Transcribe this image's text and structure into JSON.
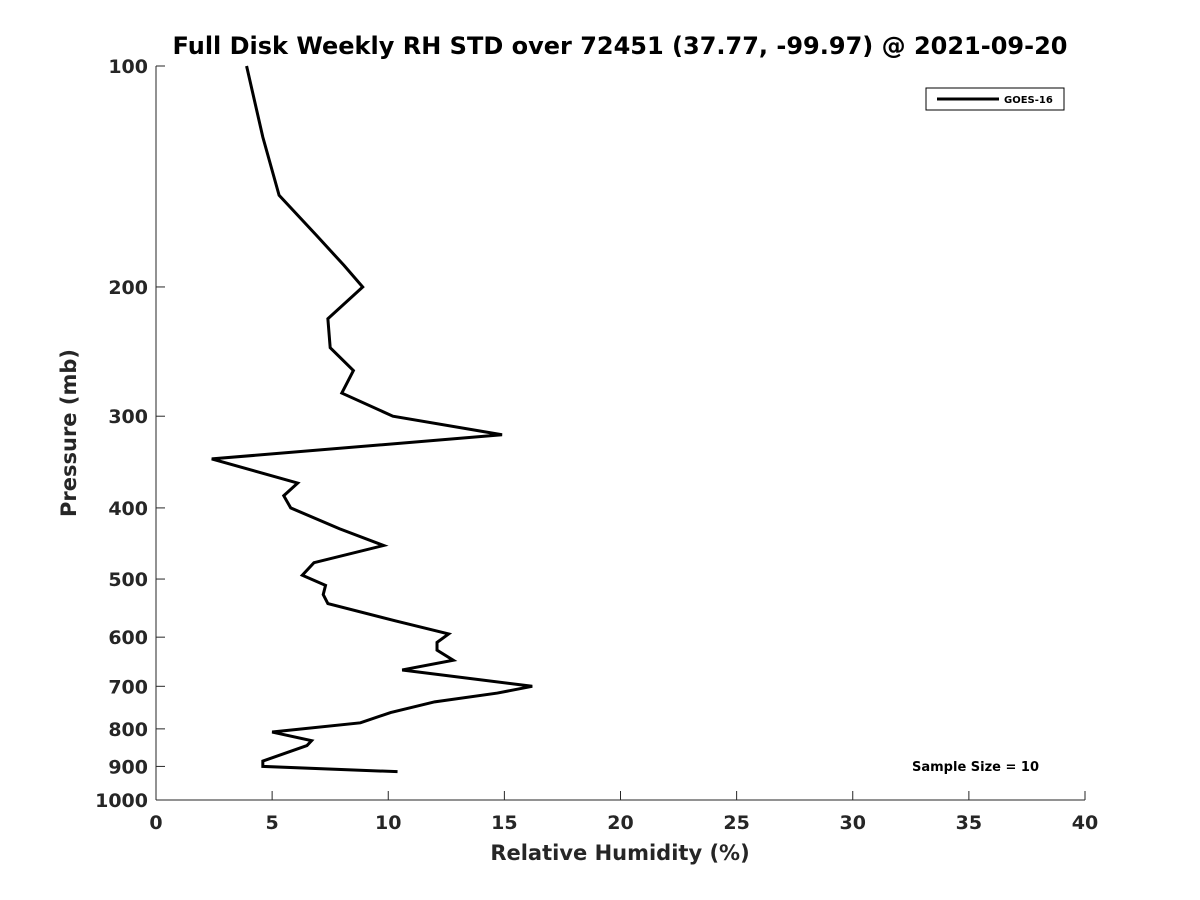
{
  "chart_data": {
    "type": "line",
    "title": "Full Disk Weekly RH STD over 72451 (37.77, -99.97) @ 2021-09-20",
    "xlabel": "Relative Humidity (%)",
    "ylabel": "Pressure (mb)",
    "xlim": [
      0,
      40
    ],
    "ylim": [
      100,
      1000
    ],
    "yscale": "log",
    "yreversed": true,
    "grid": false,
    "legend_position": "top-right",
    "x_ticks": [
      0,
      5,
      10,
      15,
      20,
      25,
      30,
      35,
      40
    ],
    "x_tick_labels": [
      "0",
      "5",
      "10",
      "15",
      "20",
      "25",
      "30",
      "35",
      "40"
    ],
    "y_ticks": [
      100,
      200,
      300,
      400,
      500,
      600,
      700,
      800,
      900,
      1000
    ],
    "y_tick_labels": [
      "100",
      "200",
      "300",
      "400",
      "500",
      "600",
      "700",
      "800",
      "900",
      "1000"
    ],
    "series": [
      {
        "name": "GOES-16",
        "color": "#000000",
        "points": [
          {
            "x": 3.9,
            "p": 100
          },
          {
            "x": 4.6,
            "p": 125
          },
          {
            "x": 5.3,
            "p": 150
          },
          {
            "x": 6.9,
            "p": 170
          },
          {
            "x": 8.1,
            "p": 187
          },
          {
            "x": 8.9,
            "p": 200
          },
          {
            "x": 7.4,
            "p": 221
          },
          {
            "x": 7.5,
            "p": 242
          },
          {
            "x": 8.5,
            "p": 260
          },
          {
            "x": 8.0,
            "p": 279
          },
          {
            "x": 10.2,
            "p": 300
          },
          {
            "x": 14.9,
            "p": 318
          },
          {
            "x": 2.4,
            "p": 343
          },
          {
            "x": 6.1,
            "p": 370
          },
          {
            "x": 5.5,
            "p": 385
          },
          {
            "x": 5.8,
            "p": 400
          },
          {
            "x": 7.9,
            "p": 427
          },
          {
            "x": 9.8,
            "p": 450
          },
          {
            "x": 6.8,
            "p": 475
          },
          {
            "x": 6.3,
            "p": 494
          },
          {
            "x": 7.3,
            "p": 510
          },
          {
            "x": 7.2,
            "p": 525
          },
          {
            "x": 7.4,
            "p": 540
          },
          {
            "x": 10.3,
            "p": 570
          },
          {
            "x": 12.6,
            "p": 594
          },
          {
            "x": 12.1,
            "p": 610
          },
          {
            "x": 12.1,
            "p": 625
          },
          {
            "x": 12.8,
            "p": 645
          },
          {
            "x": 10.6,
            "p": 665
          },
          {
            "x": 16.2,
            "p": 700
          },
          {
            "x": 14.7,
            "p": 715
          },
          {
            "x": 12.0,
            "p": 735
          },
          {
            "x": 10.1,
            "p": 760
          },
          {
            "x": 8.8,
            "p": 785
          },
          {
            "x": 5.0,
            "p": 808
          },
          {
            "x": 6.7,
            "p": 830
          },
          {
            "x": 6.5,
            "p": 843
          },
          {
            "x": 4.6,
            "p": 885
          },
          {
            "x": 4.6,
            "p": 900
          },
          {
            "x": 10.4,
            "p": 915
          }
        ]
      }
    ],
    "legend": [
      "GOES-16"
    ],
    "annotations": [
      "Sample Size = 10"
    ]
  }
}
